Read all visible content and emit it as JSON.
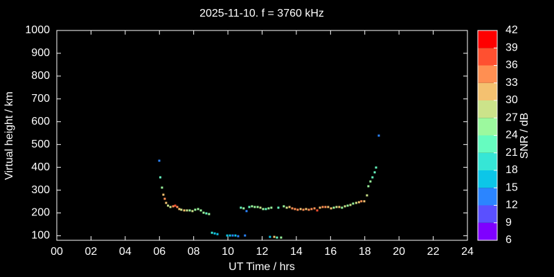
{
  "chart_data": {
    "type": "scatter",
    "title": "2025-11-10. f = 3760 kHz",
    "x_label": "UT Time / hrs",
    "y_label": "Virtual height / km",
    "xlim": [
      0,
      24
    ],
    "xticks": [
      {
        "value": 0,
        "label": "00"
      },
      {
        "value": 2,
        "label": "02"
      },
      {
        "value": 4,
        "label": "04"
      },
      {
        "value": 6,
        "label": "06"
      },
      {
        "value": 8,
        "label": "08"
      },
      {
        "value": 10,
        "label": "10"
      },
      {
        "value": 12,
        "label": "12"
      },
      {
        "value": 14,
        "label": "14"
      },
      {
        "value": 16,
        "label": "16"
      },
      {
        "value": 18,
        "label": "18"
      },
      {
        "value": 20,
        "label": "20"
      },
      {
        "value": 22,
        "label": "22"
      },
      {
        "value": 24,
        "label": "24"
      }
    ],
    "ylim": [
      80,
      1000
    ],
    "yticks": [
      100,
      200,
      300,
      400,
      500,
      600,
      700,
      800,
      900,
      1000
    ],
    "x": [
      5.99,
      6.05,
      6.15,
      6.23,
      6.31,
      6.39,
      6.5,
      6.64,
      6.8,
      6.92,
      7.04,
      7.16,
      7.28,
      7.45,
      7.61,
      7.77,
      7.93,
      8.09,
      8.26,
      8.42,
      8.58,
      8.74,
      8.9,
      9.07,
      9.23,
      9.39,
      9.96,
      10.12,
      10.28,
      10.44,
      10.6,
      10.76,
      10.92,
      11.0,
      11.09,
      11.25,
      11.41,
      11.57,
      11.74,
      11.9,
      12.06,
      12.22,
      12.38,
      12.46,
      12.54,
      12.71,
      12.87,
      12.95,
      13.11,
      13.27,
      13.44,
      13.6,
      13.76,
      13.92,
      14.08,
      14.25,
      14.41,
      14.57,
      14.73,
      14.89,
      15.06,
      15.22,
      15.38,
      15.54,
      15.7,
      15.86,
      16.03,
      16.19,
      16.35,
      16.51,
      16.67,
      16.84,
      17.0,
      17.16,
      17.32,
      17.5,
      17.66,
      17.8,
      17.97,
      18.13,
      18.21,
      18.33,
      18.45,
      18.58,
      18.66,
      18.82
    ],
    "values": [
      429,
      356,
      311,
      280,
      262,
      244,
      232,
      226,
      229,
      232,
      226,
      217,
      214,
      211,
      211,
      211,
      208,
      214,
      217,
      211,
      201,
      198,
      195,
      113,
      110,
      107,
      101,
      101,
      101,
      101,
      98,
      223,
      220,
      101,
      208,
      226,
      229,
      226,
      226,
      223,
      217,
      217,
      220,
      95,
      223,
      95,
      92,
      223,
      92,
      229,
      223,
      226,
      220,
      217,
      214,
      217,
      214,
      217,
      214,
      217,
      220,
      211,
      223,
      226,
      226,
      226,
      220,
      223,
      226,
      226,
      223,
      229,
      232,
      235,
      241,
      244,
      247,
      251,
      251,
      277,
      317,
      338,
      356,
      378,
      399,
      539
    ],
    "snr": [
      12,
      21,
      24,
      31,
      33,
      30,
      28,
      27,
      33,
      36,
      33,
      31,
      27,
      30,
      27,
      25,
      27,
      25,
      24,
      25,
      24,
      22,
      24,
      18,
      15,
      15,
      15,
      15,
      12,
      15,
      12,
      22,
      24,
      12,
      12,
      22,
      24,
      24,
      25,
      27,
      24,
      22,
      24,
      15,
      25,
      30,
      21,
      22,
      24,
      25,
      27,
      30,
      33,
      33,
      33,
      31,
      33,
      31,
      33,
      33,
      33,
      36,
      30,
      33,
      33,
      30,
      30,
      25,
      27,
      30,
      25,
      27,
      25,
      27,
      25,
      27,
      30,
      33,
      30,
      27,
      24,
      25,
      22,
      21,
      21,
      12
    ],
    "colorbar": {
      "label": "SNR / dB",
      "ticks": [
        6,
        9,
        12,
        15,
        18,
        21,
        24,
        27,
        30,
        33,
        36,
        39,
        42
      ],
      "colors": [
        "#7f00ff",
        "#5a50ff",
        "#2b85ff",
        "#0cc6e8",
        "#36e6d6",
        "#66fcc0",
        "#9cf99e",
        "#cce38a",
        "#f4c170",
        "#ff8f52",
        "#ff5030",
        "#ff0000"
      ]
    }
  }
}
